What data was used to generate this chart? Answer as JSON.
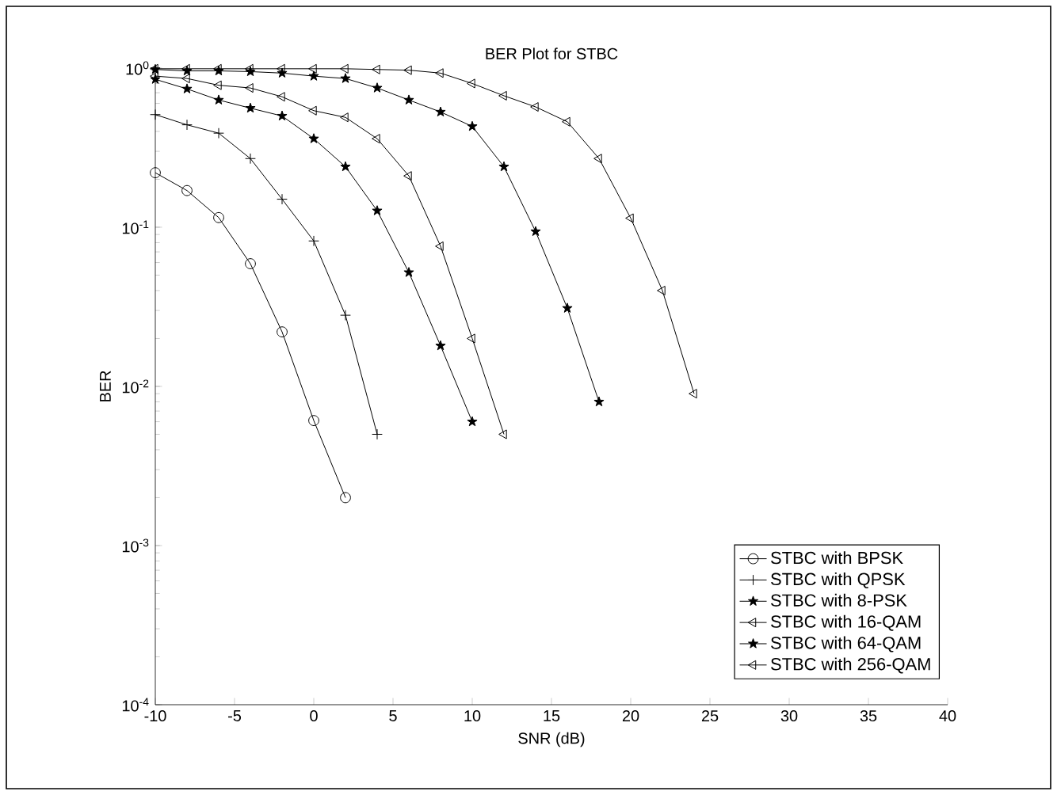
{
  "chart_data": {
    "type": "line",
    "title": "BER Plot for STBC",
    "xlabel": "SNR (dB)",
    "ylabel": "BER",
    "log": "y",
    "xlim": [
      -10,
      40
    ],
    "xticks": [
      -10,
      -5,
      0,
      5,
      10,
      15,
      20,
      25,
      30,
      35,
      40
    ],
    "ylim": [
      0.0001,
      1
    ],
    "yticks": [
      {
        "value": 0.0001,
        "label": "10$^{-4}$"
      },
      {
        "value": 0.001,
        "label": "10$^{-3}$"
      },
      {
        "value": 0.01,
        "label": "10$^{-2}$"
      },
      {
        "value": 0.1,
        "label": "10$^{-1}$"
      },
      {
        "value": 1,
        "label": "10$^{0}$"
      }
    ],
    "grid": false,
    "legend": "bottom right",
    "series": [
      {
        "name": "STBC with BPSK",
        "color": "#000000",
        "marker": "circle",
        "x": [
          -10,
          -8,
          -6,
          -4,
          -2,
          0,
          2
        ],
        "values": [
          0.22,
          0.17,
          0.115,
          0.059,
          0.022,
          0.0061,
          0.002
        ]
      },
      {
        "name": "STBC with QPSK",
        "color": "#000000",
        "marker": "cross",
        "x": [
          -10,
          -8,
          -6,
          -4,
          -2,
          0,
          2,
          4
        ],
        "values": [
          0.51,
          0.44,
          0.39,
          0.27,
          0.15,
          0.082,
          0.028,
          0.005
        ]
      },
      {
        "name": "STBC with 8-PSK",
        "color": "#000000",
        "marker": "star",
        "x": [
          -10,
          -8,
          -6,
          -4,
          -2,
          0,
          2,
          4,
          6,
          8,
          10
        ],
        "values": [
          0.85,
          0.74,
          0.63,
          0.56,
          0.5,
          0.36,
          0.24,
          0.127,
          0.052,
          0.018,
          0.006
        ]
      },
      {
        "name": "STBC with 16-QAM",
        "color": "#000000",
        "marker": "triangle",
        "x": [
          -10,
          -8,
          -6,
          -4,
          -2,
          0,
          2,
          4,
          6,
          8,
          10,
          12
        ],
        "values": [
          0.89,
          0.86,
          0.78,
          0.75,
          0.66,
          0.54,
          0.49,
          0.36,
          0.21,
          0.076,
          0.02,
          0.005
        ]
      },
      {
        "name": "STBC with 64-QAM",
        "color": "#000000",
        "marker": "star",
        "x": [
          -10,
          -8,
          -6,
          -4,
          -2,
          0,
          2,
          4,
          6,
          8,
          10,
          12,
          14,
          16,
          18
        ],
        "values": [
          0.98,
          0.96,
          0.96,
          0.95,
          0.93,
          0.89,
          0.86,
          0.75,
          0.63,
          0.53,
          0.43,
          0.24,
          0.094,
          0.031,
          0.008
        ]
      },
      {
        "name": "STBC with 256-QAM",
        "color": "#000000",
        "marker": "triangle",
        "x": [
          -10,
          -8,
          -6,
          -4,
          -2,
          0,
          2,
          4,
          6,
          8,
          10,
          12,
          14,
          16,
          18,
          20,
          22,
          24
        ],
        "values": [
          0.99,
          0.99,
          0.99,
          0.99,
          0.99,
          0.99,
          0.99,
          0.98,
          0.97,
          0.93,
          0.8,
          0.67,
          0.57,
          0.46,
          0.27,
          0.114,
          0.04,
          0.009
        ]
      }
    ]
  }
}
